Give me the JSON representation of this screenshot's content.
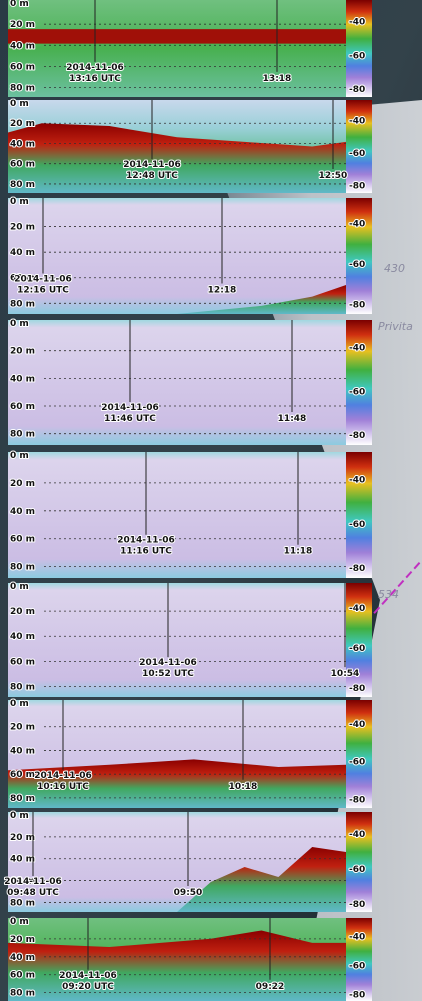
{
  "depth_labels": [
    "0 m",
    "20 m",
    "40 m",
    "60 m",
    "80 m"
  ],
  "scale_labels": [
    "-40",
    "-60",
    "-80"
  ],
  "map_labels": [
    "430",
    "534",
    "Privita"
  ],
  "panels": [
    {
      "date": "2014-11-06",
      "start": "13:16 UTC",
      "end": "13:18"
    },
    {
      "date": "2014-11-06",
      "start": "12:48 UTC",
      "end": "12:50"
    },
    {
      "date": "2014-11-06",
      "start": "12:16 UTC",
      "end": "12:18"
    },
    {
      "date": "2014-11-06",
      "start": "11:46 UTC",
      "end": "11:48"
    },
    {
      "date": "2014-11-06",
      "start": "11:16 UTC",
      "end": "11:18"
    },
    {
      "date": "2014-11-06",
      "start": "10:52 UTC",
      "end": "10:54"
    },
    {
      "date": "2014-11-06",
      "start": "10:16 UTC",
      "end": "10:18"
    },
    {
      "date": "2014-11-06",
      "start": "09:48 UTC",
      "end": "09:50"
    },
    {
      "date": "2014-11-06",
      "start": "09:20 UTC",
      "end": "09:22"
    }
  ]
}
